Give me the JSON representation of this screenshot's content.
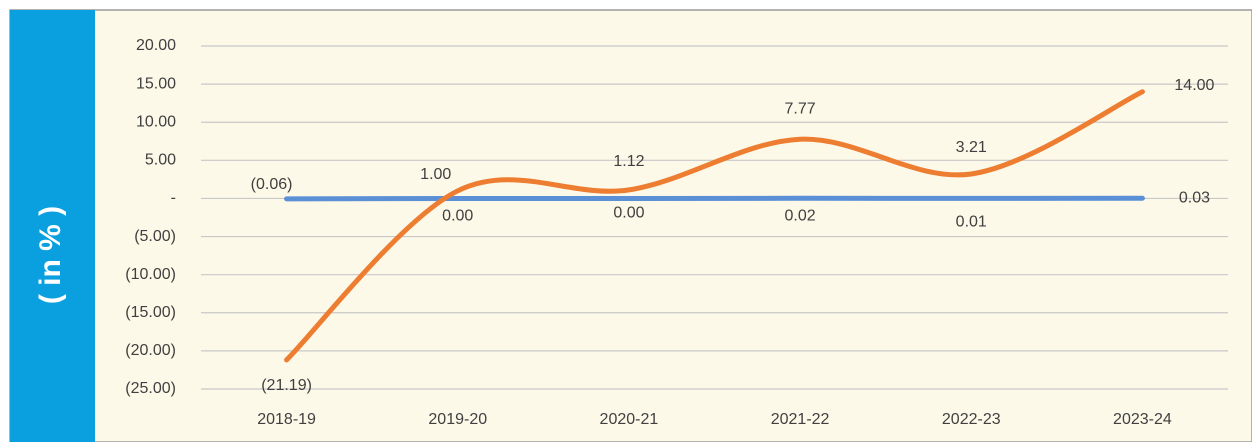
{
  "chart_data": {
    "type": "line",
    "ylabel": "( in % )",
    "categories": [
      "2018-19",
      "2019-20",
      "2020-21",
      "2021-22",
      "2022-23",
      "2023-24"
    ],
    "series": [
      {
        "color": "#ed7d31",
        "smooth": true,
        "values": [
          -21.19,
          1.0,
          1.12,
          7.77,
          3.21,
          14.0
        ],
        "value_labels": [
          "(21.19)",
          "1.00",
          "1.12",
          "7.77",
          "3.21",
          "14.00"
        ]
      },
      {
        "color": "#5b8fd6",
        "smooth": false,
        "values": [
          -0.06,
          0.0,
          0.0,
          0.02,
          0.01,
          0.03
        ],
        "value_labels": [
          "(0.06)",
          "0.00",
          "0.00",
          "0.02",
          "0.01",
          "0.03"
        ]
      }
    ],
    "ylim": [
      -25,
      20
    ],
    "yticks": [
      {
        "value": 20,
        "label": "20.00"
      },
      {
        "value": 15,
        "label": "15.00"
      },
      {
        "value": 10,
        "label": "10.00"
      },
      {
        "value": 5,
        "label": "5.00"
      },
      {
        "value": 0,
        "label": "-"
      },
      {
        "value": -5,
        "label": "(5.00)"
      },
      {
        "value": -10,
        "label": "(10.00)"
      },
      {
        "value": -15,
        "label": "(15.00)"
      },
      {
        "value": -20,
        "label": "(20.00)"
      },
      {
        "value": -25,
        "label": "(25.00)"
      }
    ],
    "grid": true
  }
}
